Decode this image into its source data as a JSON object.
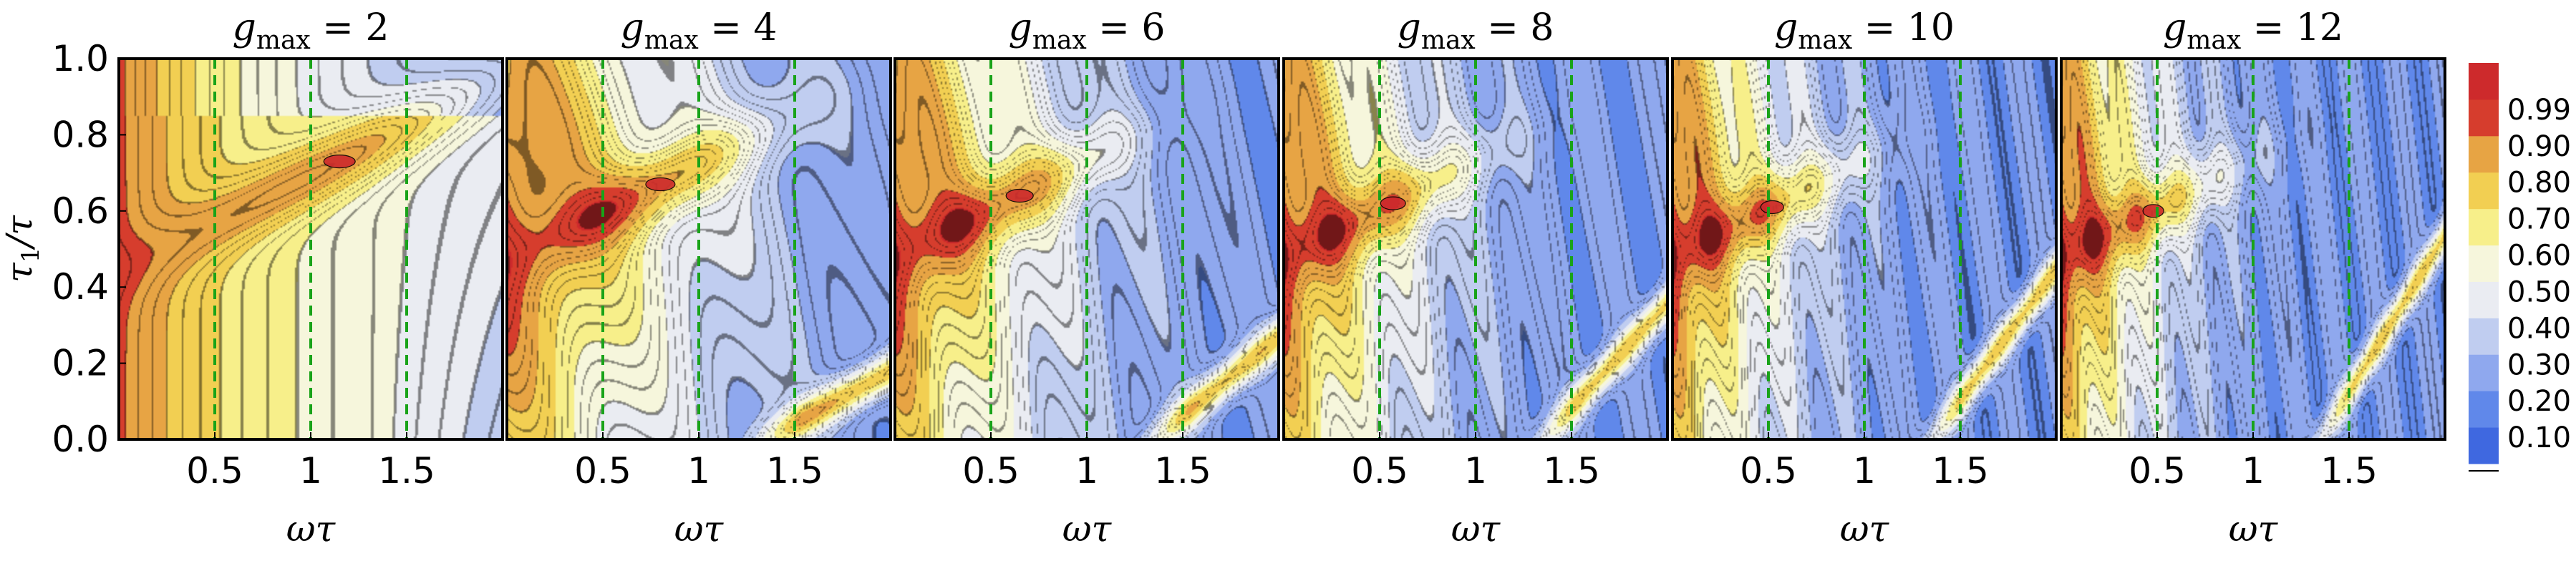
{
  "chart_data": {
    "type": "heatmap",
    "description_kind": "contour",
    "panels": [
      {
        "title_var": "g",
        "title_sub": "max",
        "title_eq": " = 2",
        "g_max": 2,
        "peak": {
          "x": 1.15,
          "y": 0.73,
          "value": 0.99
        }
      },
      {
        "title_var": "g",
        "title_sub": "max",
        "title_eq": " = 4",
        "g_max": 4,
        "peak": {
          "x": 0.8,
          "y": 0.67,
          "value": 0.99
        }
      },
      {
        "title_var": "g",
        "title_sub": "max",
        "title_eq": " = 6",
        "g_max": 6,
        "peak": {
          "x": 0.65,
          "y": 0.64,
          "value": 0.99
        }
      },
      {
        "title_var": "g",
        "title_sub": "max",
        "title_eq": " = 8",
        "g_max": 8,
        "peak": {
          "x": 0.57,
          "y": 0.62,
          "value": 0.99
        }
      },
      {
        "title_var": "g",
        "title_sub": "max",
        "title_eq": " = 10",
        "g_max": 10,
        "peak": {
          "x": 0.52,
          "y": 0.61,
          "value": 0.99
        }
      },
      {
        "title_var": "g",
        "title_sub": "max",
        "title_eq": " = 12",
        "g_max": 12,
        "peak": {
          "x": 0.48,
          "y": 0.6,
          "value": 0.99
        }
      }
    ],
    "xlabel": "ωτ",
    "ylabel_main": "τ",
    "ylabel_sub": "1",
    "ylabel_tail": "/τ",
    "xlim": [
      0,
      2
    ],
    "ylim": [
      0,
      1
    ],
    "xticks": [
      0.5,
      1,
      1.5
    ],
    "xtick_labels": [
      "0.5",
      "1",
      "1.5"
    ],
    "yticks": [
      0,
      0.2,
      0.4,
      0.6,
      0.8,
      1.0
    ],
    "ytick_labels": [
      "0.0",
      "0.2",
      "0.4",
      "0.6",
      "0.8",
      "1.0"
    ],
    "reference_lines_x": [
      0.5,
      1,
      1.5
    ],
    "reference_line_color": "#19a319",
    "colorbar": {
      "levels": [
        0.1,
        0.2,
        0.3,
        0.4,
        0.5,
        0.6,
        0.7,
        0.8,
        0.9,
        0.99
      ],
      "labels": [
        "0.10",
        "0.20",
        "0.30",
        "0.40",
        "0.50",
        "0.60",
        "0.70",
        "0.80",
        "0.90",
        "0.99"
      ],
      "colors": [
        "#3f68e0",
        "#6088ea",
        "#8fa8ee",
        "#c0cdf0",
        "#eaecf2",
        "#f6f6dc",
        "#f7ef8a",
        "#f2cf52",
        "#e7a444",
        "#d63d2d",
        "#cd2a2c"
      ]
    }
  }
}
